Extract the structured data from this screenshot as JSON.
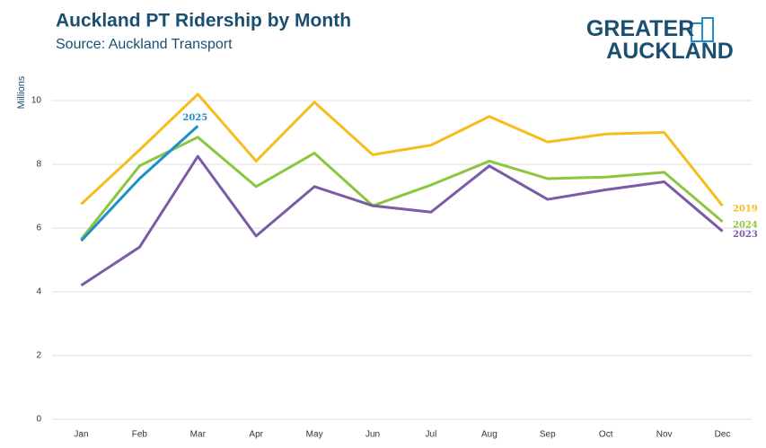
{
  "logo": "GREATER AUCKLAND",
  "chart_data": {
    "type": "line",
    "title": "Auckland PT Ridership by Month",
    "subtitle": "Source: Auckland Transport",
    "y_label": "Millions",
    "categories": [
      "Jan",
      "Feb",
      "Mar",
      "Apr",
      "May",
      "Jun",
      "Jul",
      "Aug",
      "Sep",
      "Oct",
      "Nov",
      "Dec"
    ],
    "series": [
      {
        "name": "2019",
        "color": "#f5bc1c",
        "values": [
          6.75,
          8.45,
          10.2,
          8.1,
          9.95,
          8.3,
          8.6,
          9.5,
          8.7,
          8.95,
          9.0,
          6.7
        ]
      },
      {
        "name": "2024",
        "color": "#8cc63f",
        "values": [
          5.65,
          7.95,
          8.85,
          7.3,
          8.35,
          6.7,
          7.35,
          8.1,
          7.55,
          7.6,
          7.75,
          6.2
        ]
      },
      {
        "name": "2023",
        "color": "#7b5aa6",
        "values": [
          4.2,
          5.4,
          8.25,
          5.75,
          7.3,
          6.7,
          6.5,
          7.95,
          6.9,
          7.2,
          7.45,
          5.9
        ]
      },
      {
        "name": "2025",
        "color": "#1f8fc8",
        "values": [
          5.6,
          7.55,
          9.2,
          null,
          null,
          null,
          null,
          null,
          null,
          null,
          null,
          null
        ]
      }
    ],
    "ylim": [
      0,
      11
    ],
    "yticks": [
      0,
      2,
      4,
      6,
      8,
      10
    ],
    "grid": true
  }
}
